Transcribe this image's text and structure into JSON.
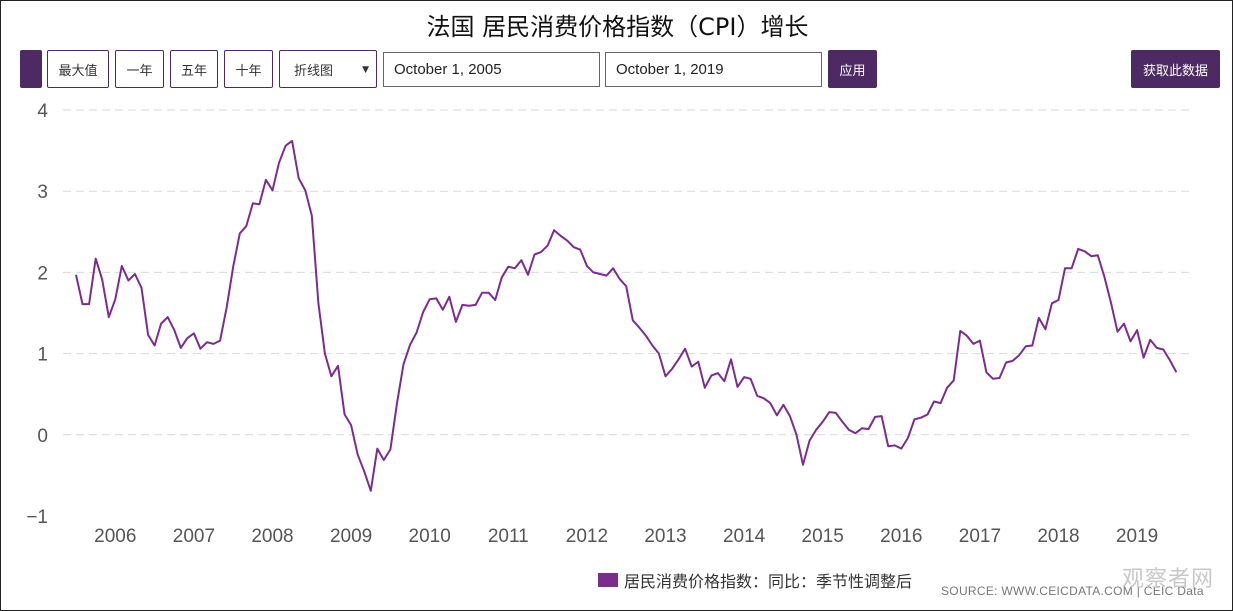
{
  "page": {
    "title": "法国 居民消费价格指数（CPI）增长"
  },
  "toolbar": {
    "range_buttons": [
      "最大值",
      "一年",
      "五年",
      "十年"
    ],
    "chart_type_select": "折线图",
    "start_date": "October 1, 2005",
    "end_date": "October 1, 2019",
    "apply_label": "应用",
    "download_label": "获取此数据"
  },
  "footer": {
    "source": "SOURCE: WWW.CEICDATA.COM | CEIC Data",
    "watermark": "观察者网"
  },
  "colors": {
    "line": "#7b2d8e",
    "accent": "#4d2a63",
    "grid": "#d9d9d9"
  },
  "chart_data": {
    "type": "line",
    "title": "法国 居民消费价格指数（CPI）增长",
    "xlabel": "",
    "ylabel": "",
    "ylim": [
      -1,
      4
    ],
    "yticks": [
      "4",
      "3",
      "2",
      "1",
      "0",
      "-1"
    ],
    "xticks": [
      "2006",
      "2007",
      "2008",
      "2009",
      "2010",
      "2011",
      "2012",
      "2013",
      "2014",
      "2015",
      "2016",
      "2017",
      "2018",
      "2019"
    ],
    "grid": "horizontal dashed",
    "legend_position": "bottom",
    "x_start": "2005-10",
    "x_end": "2019-10",
    "frequency": "monthly",
    "series": [
      {
        "name": "居民消费价格指数：同比：季节性调整后",
        "values": [
          1.97,
          1.61,
          1.61,
          2.17,
          1.91,
          1.45,
          1.67,
          2.08,
          1.9,
          1.98,
          1.81,
          1.23,
          1.1,
          1.37,
          1.45,
          1.29,
          1.07,
          1.19,
          1.25,
          1.06,
          1.14,
          1.12,
          1.16,
          1.57,
          2.07,
          2.48,
          2.57,
          2.85,
          2.84,
          3.14,
          3.01,
          3.35,
          3.56,
          3.62,
          3.16,
          3.01,
          2.7,
          1.62,
          1.0,
          0.72,
          0.85,
          0.25,
          0.12,
          -0.24,
          -0.45,
          -0.69,
          -0.17,
          -0.31,
          -0.18,
          0.38,
          0.87,
          1.11,
          1.26,
          1.51,
          1.67,
          1.68,
          1.54,
          1.7,
          1.39,
          1.6,
          1.59,
          1.6,
          1.75,
          1.75,
          1.66,
          1.94,
          2.07,
          2.05,
          2.15,
          1.97,
          2.22,
          2.25,
          2.33,
          2.52,
          2.45,
          2.39,
          2.31,
          2.28,
          2.08,
          2.0,
          1.98,
          1.96,
          2.05,
          1.92,
          1.83,
          1.41,
          1.32,
          1.22,
          1.1,
          1.0,
          0.72,
          0.81,
          0.93,
          1.06,
          0.84,
          0.9,
          0.58,
          0.73,
          0.76,
          0.66,
          0.93,
          0.59,
          0.71,
          0.69,
          0.48,
          0.45,
          0.39,
          0.24,
          0.37,
          0.23,
          0.0,
          -0.37,
          -0.07,
          0.06,
          0.16,
          0.28,
          0.27,
          0.16,
          0.06,
          0.02,
          0.08,
          0.07,
          0.22,
          0.23,
          -0.14,
          -0.13,
          -0.17,
          -0.04,
          0.19,
          0.21,
          0.25,
          0.41,
          0.39,
          0.58,
          0.67,
          1.28,
          1.22,
          1.12,
          1.16,
          0.77,
          0.69,
          0.7,
          0.89,
          0.91,
          0.98,
          1.09,
          1.1,
          1.44,
          1.3,
          1.62,
          1.66,
          2.05,
          2.05,
          2.29,
          2.26,
          2.2,
          2.21,
          1.95,
          1.63,
          1.27,
          1.37,
          1.15,
          1.29,
          0.95,
          1.17,
          1.07,
          1.05,
          0.92,
          0.77
        ]
      }
    ]
  }
}
